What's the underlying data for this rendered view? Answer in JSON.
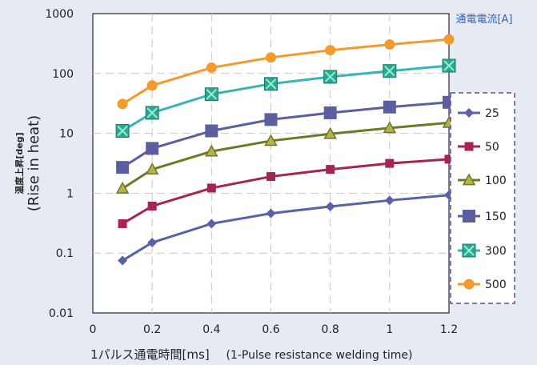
{
  "chart_data": {
    "type": "line",
    "y_scale": "log",
    "x": [
      0.1,
      0.2,
      0.4,
      0.6,
      0.8,
      1.0,
      1.2
    ],
    "xlim": [
      0,
      1.2
    ],
    "ylim": [
      0.01,
      1000
    ],
    "x_ticks": [
      "0",
      "0.2",
      "0.4",
      "0.6",
      "0.8",
      "1",
      "1.2"
    ],
    "y_ticks": [
      "0.01",
      "0.1",
      "1",
      "10",
      "100",
      "1000"
    ],
    "xlabel_jp": "1パルス通電時間[ms]",
    "xlabel_en": "(1-Pulse resistance welding time)",
    "ylabel_jp": "温度上昇[deg]",
    "ylabel_en": "(Rise in heat)",
    "legend_title": "通電電流[A]",
    "legend_placement": "right",
    "grid": "dashed horizontal and vertical",
    "series": [
      {
        "name": "25",
        "color": "#5863a6",
        "marker": "diamond",
        "values": [
          0.075,
          0.15,
          0.31,
          0.46,
          0.6,
          0.76,
          0.93
        ]
      },
      {
        "name": "50",
        "color": "#a62454",
        "marker": "square",
        "values": [
          0.31,
          0.61,
          1.22,
          1.9,
          2.5,
          3.15,
          3.7
        ]
      },
      {
        "name": "100",
        "color": "#6b7a24",
        "marker": "triangle",
        "values": [
          1.2,
          2.5,
          5.0,
          7.5,
          9.8,
          12.3,
          15.0
        ]
      },
      {
        "name": "150",
        "color": "#5b5e9f",
        "marker": "square-large",
        "values": [
          2.7,
          5.6,
          11.0,
          17.0,
          22.0,
          27.5,
          33.0
        ]
      },
      {
        "name": "300",
        "color": "#35b5b3",
        "marker": "x-square",
        "values": [
          11.0,
          22.0,
          45.0,
          67.0,
          88.0,
          110.0,
          135.0
        ]
      },
      {
        "name": "500",
        "color": "#f29a2e",
        "marker": "circle",
        "values": [
          31.0,
          63.0,
          125.0,
          185.0,
          245.0,
          305.0,
          370.0
        ]
      }
    ]
  }
}
